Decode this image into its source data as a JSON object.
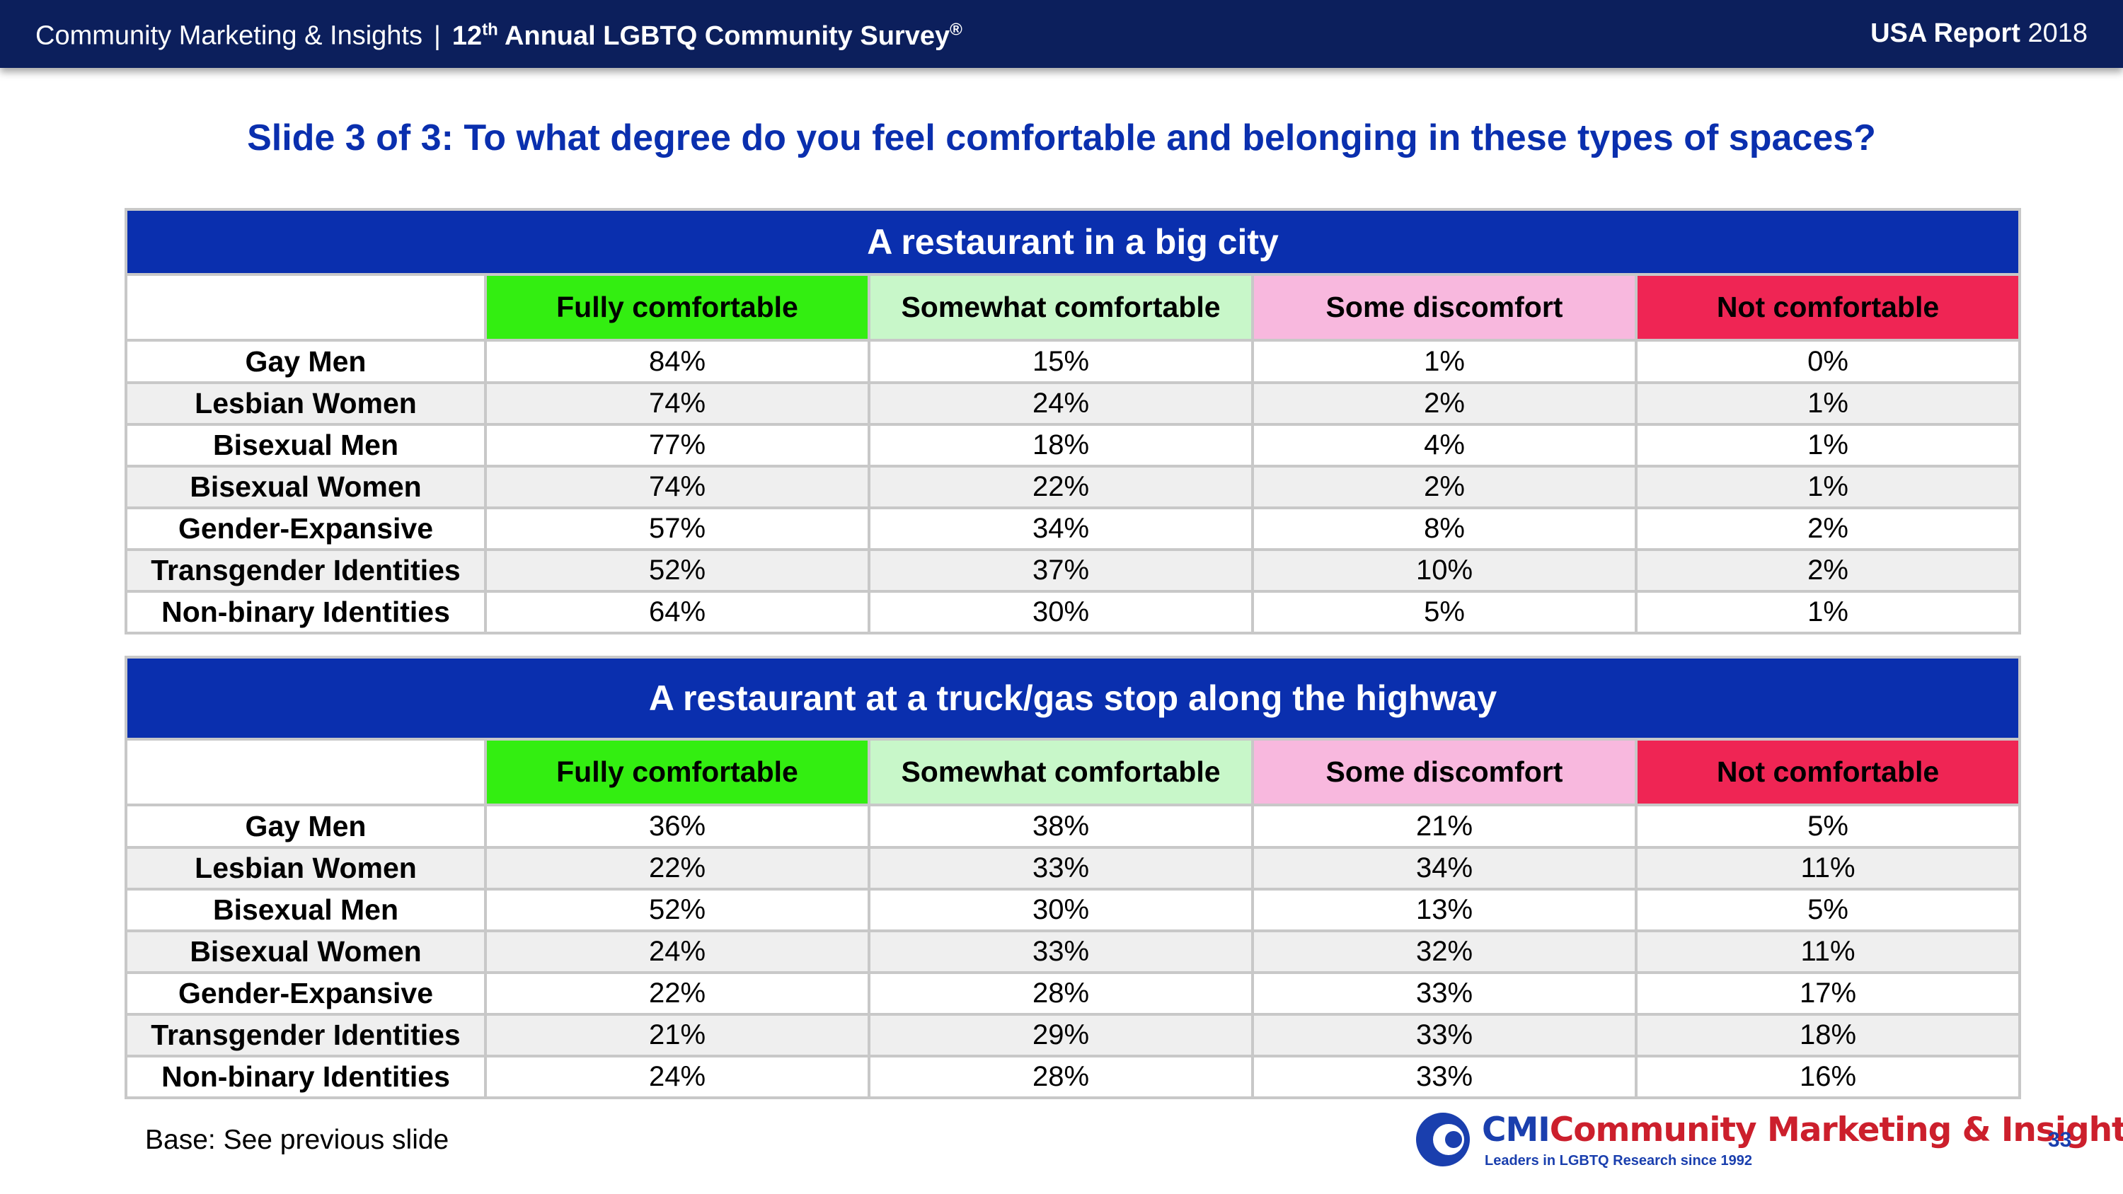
{
  "header": {
    "company": "Community Marketing & Insights",
    "separator": "|",
    "survey_prefix": "12",
    "survey_sup": "th",
    "survey_suffix": " Annual LGBTQ Community Survey",
    "survey_mark": "®",
    "report_label": "USA Report",
    "report_year": "2018"
  },
  "slide_title": "Slide 3 of 3: To what degree do you feel comfortable and belonging in these types of spaces?",
  "tables": [
    {
      "title": "A restaurant in a big city",
      "columns": [
        "Fully comfortable",
        "Somewhat comfortable",
        "Some discomfort",
        "Not comfortable"
      ],
      "rows": [
        {
          "label": "Gay Men",
          "values": [
            "84%",
            "15%",
            "1%",
            "0%"
          ]
        },
        {
          "label": "Lesbian Women",
          "values": [
            "74%",
            "24%",
            "2%",
            "1%"
          ]
        },
        {
          "label": "Bisexual Men",
          "values": [
            "77%",
            "18%",
            "4%",
            "1%"
          ]
        },
        {
          "label": "Bisexual Women",
          "values": [
            "74%",
            "22%",
            "2%",
            "1%"
          ]
        },
        {
          "label": "Gender-Expansive",
          "values": [
            "57%",
            "34%",
            "8%",
            "2%"
          ]
        },
        {
          "label": "Transgender Identities",
          "values": [
            "52%",
            "37%",
            "10%",
            "2%"
          ]
        },
        {
          "label": "Non-binary Identities",
          "values": [
            "64%",
            "30%",
            "5%",
            "1%"
          ]
        }
      ]
    },
    {
      "title": "A restaurant at a truck/gas stop along the highway",
      "columns": [
        "Fully comfortable",
        "Somewhat comfortable",
        "Some discomfort",
        "Not comfortable"
      ],
      "rows": [
        {
          "label": "Gay Men",
          "values": [
            "36%",
            "38%",
            "21%",
            "5%"
          ]
        },
        {
          "label": "Lesbian Women",
          "values": [
            "22%",
            "33%",
            "34%",
            "11%"
          ]
        },
        {
          "label": "Bisexual Men",
          "values": [
            "52%",
            "30%",
            "13%",
            "5%"
          ]
        },
        {
          "label": "Bisexual Women",
          "values": [
            "24%",
            "33%",
            "32%",
            "11%"
          ]
        },
        {
          "label": "Gender-Expansive",
          "values": [
            "22%",
            "28%",
            "33%",
            "17%"
          ]
        },
        {
          "label": "Transgender Identities",
          "values": [
            "21%",
            "29%",
            "33%",
            "18%"
          ]
        },
        {
          "label": "Non-binary Identities",
          "values": [
            "24%",
            "28%",
            "33%",
            "16%"
          ]
        }
      ]
    }
  ],
  "footer": {
    "base_note": "Base: See previous slide",
    "logo_abbr": "CMI",
    "logo_name": "Community Marketing & Insights",
    "logo_tagline": "Leaders in LGBTQ Research since 1992",
    "page_number": "33"
  },
  "colors": {
    "header_bg": "#0c1f5c",
    "title_blue": "#0a2fae",
    "fully": "#33ee11",
    "somewhat": "#c8f7c9",
    "discomfort": "#f8b8de",
    "not": "#ef2554"
  }
}
